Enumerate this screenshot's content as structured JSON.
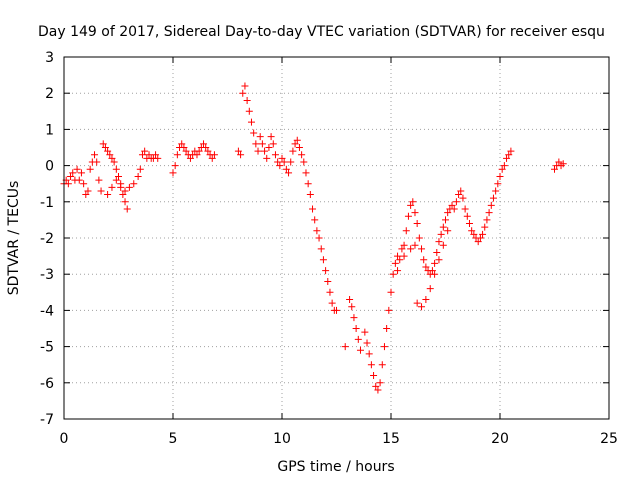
{
  "chart_data": {
    "type": "scatter",
    "title": "Day 149 of 2017, Sidereal Day-to-day VTEC variation (SDTVAR) for receiver esqu",
    "xlabel": "GPS time / hours",
    "ylabel": "SDTVAR / TECUs",
    "xlim": [
      0,
      25
    ],
    "ylim": [
      -7,
      3
    ],
    "xticks": [
      "0",
      "5",
      "10",
      "15",
      "20",
      "25"
    ],
    "yticks": [
      "3",
      "2",
      "1",
      "0",
      "-1",
      "-2",
      "-3",
      "-4",
      "-5",
      "-6",
      "-7"
    ],
    "grid": true,
    "series": [
      {
        "marker": "plus",
        "color": "#ff0000",
        "points": [
          [
            0.0,
            -0.5
          ],
          [
            0.1,
            -0.4
          ],
          [
            0.2,
            -0.5
          ],
          [
            0.3,
            -0.3
          ],
          [
            0.4,
            -0.2
          ],
          [
            0.5,
            -0.4
          ],
          [
            0.6,
            -0.1
          ],
          [
            0.7,
            -0.4
          ],
          [
            0.8,
            -0.2
          ],
          [
            0.9,
            -0.5
          ],
          [
            1.0,
            -0.8
          ],
          [
            1.1,
            -0.7
          ],
          [
            1.2,
            -0.1
          ],
          [
            1.3,
            0.1
          ],
          [
            1.4,
            0.3
          ],
          [
            1.5,
            0.1
          ],
          [
            1.6,
            -0.4
          ],
          [
            1.7,
            -0.7
          ],
          [
            1.8,
            0.6
          ],
          [
            1.9,
            0.5
          ],
          [
            2.0,
            0.4
          ],
          [
            2.1,
            0.3
          ],
          [
            2.2,
            0.2
          ],
          [
            2.3,
            0.1
          ],
          [
            2.4,
            -0.1
          ],
          [
            2.5,
            -0.3
          ],
          [
            2.6,
            -0.6
          ],
          [
            2.7,
            -0.8
          ],
          [
            2.8,
            -1.0
          ],
          [
            2.9,
            -1.2
          ],
          [
            2.0,
            -0.8
          ],
          [
            2.2,
            -0.6
          ],
          [
            2.4,
            -0.4
          ],
          [
            2.6,
            -0.5
          ],
          [
            2.8,
            -0.7
          ],
          [
            3.0,
            -0.6
          ],
          [
            3.2,
            -0.5
          ],
          [
            3.4,
            -0.3
          ],
          [
            3.5,
            -0.1
          ],
          [
            3.6,
            0.3
          ],
          [
            3.7,
            0.4
          ],
          [
            3.8,
            0.2
          ],
          [
            3.9,
            0.3
          ],
          [
            4.0,
            0.2
          ],
          [
            4.1,
            0.2
          ],
          [
            4.2,
            0.3
          ],
          [
            4.3,
            0.2
          ],
          [
            5.0,
            -0.2
          ],
          [
            5.1,
            0.0
          ],
          [
            5.2,
            0.3
          ],
          [
            5.3,
            0.5
          ],
          [
            5.4,
            0.6
          ],
          [
            5.5,
            0.5
          ],
          [
            5.6,
            0.4
          ],
          [
            5.7,
            0.3
          ],
          [
            5.8,
            0.2
          ],
          [
            5.9,
            0.3
          ],
          [
            6.0,
            0.4
          ],
          [
            6.1,
            0.3
          ],
          [
            6.2,
            0.4
          ],
          [
            6.3,
            0.5
          ],
          [
            6.4,
            0.6
          ],
          [
            6.5,
            0.5
          ],
          [
            6.6,
            0.4
          ],
          [
            6.7,
            0.3
          ],
          [
            6.8,
            0.2
          ],
          [
            6.9,
            0.3
          ],
          [
            8.0,
            0.4
          ],
          [
            8.1,
            0.3
          ],
          [
            8.2,
            2.0
          ],
          [
            8.3,
            2.2
          ],
          [
            8.4,
            1.8
          ],
          [
            8.5,
            1.5
          ],
          [
            8.6,
            1.2
          ],
          [
            8.7,
            0.9
          ],
          [
            8.8,
            0.6
          ],
          [
            8.9,
            0.4
          ],
          [
            9.0,
            0.8
          ],
          [
            9.1,
            0.6
          ],
          [
            9.2,
            0.4
          ],
          [
            9.3,
            0.2
          ],
          [
            9.4,
            0.5
          ],
          [
            9.5,
            0.8
          ],
          [
            9.6,
            0.6
          ],
          [
            9.7,
            0.3
          ],
          [
            9.8,
            0.1
          ],
          [
            9.9,
            0.0
          ],
          [
            10.0,
            0.2
          ],
          [
            10.1,
            0.1
          ],
          [
            10.2,
            -0.1
          ],
          [
            10.3,
            -0.2
          ],
          [
            10.4,
            0.1
          ],
          [
            10.5,
            0.4
          ],
          [
            10.6,
            0.6
          ],
          [
            10.7,
            0.7
          ],
          [
            10.8,
            0.5
          ],
          [
            10.9,
            0.3
          ],
          [
            11.0,
            0.1
          ],
          [
            11.1,
            -0.2
          ],
          [
            11.2,
            -0.5
          ],
          [
            11.3,
            -0.8
          ],
          [
            11.4,
            -1.2
          ],
          [
            11.5,
            -1.5
          ],
          [
            11.6,
            -1.8
          ],
          [
            11.7,
            -2.0
          ],
          [
            11.8,
            -2.3
          ],
          [
            11.9,
            -2.6
          ],
          [
            12.0,
            -2.9
          ],
          [
            12.1,
            -3.2
          ],
          [
            12.2,
            -3.5
          ],
          [
            12.3,
            -3.8
          ],
          [
            12.4,
            -4.0
          ],
          [
            12.5,
            -4.0
          ],
          [
            12.9,
            -5.0
          ],
          [
            13.1,
            -3.7
          ],
          [
            13.2,
            -3.9
          ],
          [
            13.3,
            -4.2
          ],
          [
            13.4,
            -4.5
          ],
          [
            13.5,
            -4.8
          ],
          [
            13.6,
            -5.1
          ],
          [
            13.8,
            -4.6
          ],
          [
            13.9,
            -4.9
          ],
          [
            14.0,
            -5.2
          ],
          [
            14.1,
            -5.5
          ],
          [
            14.2,
            -5.8
          ],
          [
            14.3,
            -6.1
          ],
          [
            14.4,
            -6.2
          ],
          [
            14.5,
            -6.0
          ],
          [
            14.6,
            -5.5
          ],
          [
            14.7,
            -5.0
          ],
          [
            14.8,
            -4.5
          ],
          [
            14.9,
            -4.0
          ],
          [
            15.0,
            -3.5
          ],
          [
            15.1,
            -3.0
          ],
          [
            15.2,
            -2.7
          ],
          [
            15.3,
            -2.5
          ],
          [
            15.4,
            -2.6
          ],
          [
            15.5,
            -2.3
          ],
          [
            15.6,
            -2.2
          ],
          [
            15.7,
            -1.8
          ],
          [
            15.8,
            -1.4
          ],
          [
            15.9,
            -1.1
          ],
          [
            16.0,
            -1.0
          ],
          [
            16.1,
            -1.3
          ],
          [
            16.2,
            -1.6
          ],
          [
            16.3,
            -2.0
          ],
          [
            16.4,
            -2.3
          ],
          [
            16.5,
            -2.6
          ],
          [
            16.6,
            -2.8
          ],
          [
            16.7,
            -2.9
          ],
          [
            16.8,
            -3.0
          ],
          [
            16.9,
            -2.9
          ],
          [
            17.0,
            -2.7
          ],
          [
            17.1,
            -2.4
          ],
          [
            17.2,
            -2.1
          ],
          [
            17.3,
            -1.9
          ],
          [
            17.4,
            -1.7
          ],
          [
            17.5,
            -1.5
          ],
          [
            17.6,
            -1.3
          ],
          [
            17.7,
            -1.2
          ],
          [
            17.8,
            -1.1
          ],
          [
            17.9,
            -1.2
          ],
          [
            18.0,
            -1.0
          ],
          [
            18.1,
            -0.8
          ],
          [
            18.2,
            -0.7
          ],
          [
            18.3,
            -0.9
          ],
          [
            18.4,
            -1.2
          ],
          [
            18.5,
            -1.4
          ],
          [
            18.6,
            -1.6
          ],
          [
            18.7,
            -1.8
          ],
          [
            18.8,
            -1.9
          ],
          [
            18.9,
            -2.0
          ],
          [
            19.0,
            -2.1
          ],
          [
            19.1,
            -2.0
          ],
          [
            19.2,
            -1.9
          ],
          [
            19.3,
            -1.7
          ],
          [
            19.4,
            -1.5
          ],
          [
            19.5,
            -1.3
          ],
          [
            19.6,
            -1.1
          ],
          [
            19.7,
            -0.9
          ],
          [
            19.8,
            -0.7
          ],
          [
            19.9,
            -0.5
          ],
          [
            20.0,
            -0.3
          ],
          [
            20.1,
            -0.1
          ],
          [
            20.2,
            0.0
          ],
          [
            20.3,
            0.2
          ],
          [
            20.4,
            0.3
          ],
          [
            20.5,
            0.4
          ],
          [
            16.2,
            -3.8
          ],
          [
            16.4,
            -3.9
          ],
          [
            16.6,
            -3.7
          ],
          [
            16.8,
            -3.4
          ],
          [
            17.0,
            -3.0
          ],
          [
            17.2,
            -2.6
          ],
          [
            17.4,
            -2.2
          ],
          [
            17.6,
            -1.8
          ],
          [
            15.3,
            -2.9
          ],
          [
            15.6,
            -2.5
          ],
          [
            15.9,
            -2.3
          ],
          [
            16.1,
            -2.2
          ],
          [
            22.5,
            -0.1
          ],
          [
            22.6,
            0.0
          ],
          [
            22.7,
            0.1
          ],
          [
            22.8,
            0.0
          ],
          [
            22.9,
            0.05
          ]
        ]
      }
    ]
  }
}
